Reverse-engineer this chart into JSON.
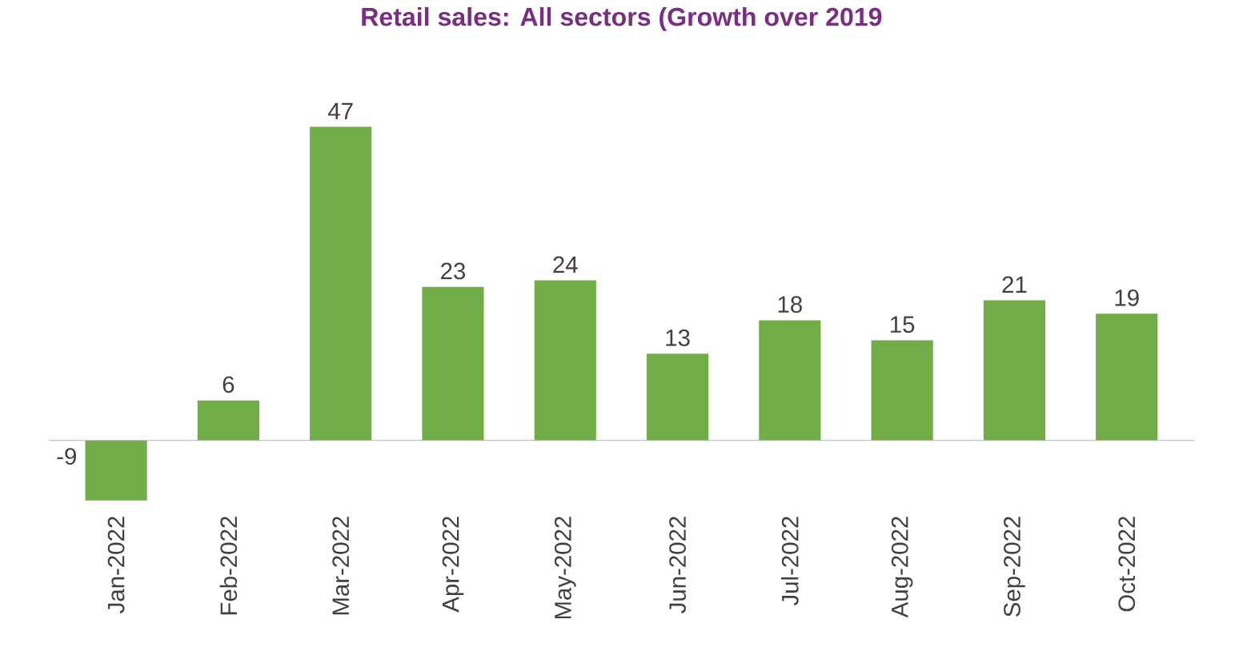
{
  "chart_data": {
    "type": "bar",
    "title": "Retail sales: All sectors (Growth over 2019",
    "categories": [
      "Jan-2022",
      "Feb-2022",
      "Mar-2022",
      "Apr-2022",
      "May-2022",
      "Jun-2022",
      "Jul-2022",
      "Aug-2022",
      "Sep-2022",
      "Oct-2022"
    ],
    "values": [
      -9,
      6,
      47,
      23,
      24,
      13,
      18,
      15,
      21,
      19
    ],
    "color": "#70ad47",
    "data_labels": true
  }
}
